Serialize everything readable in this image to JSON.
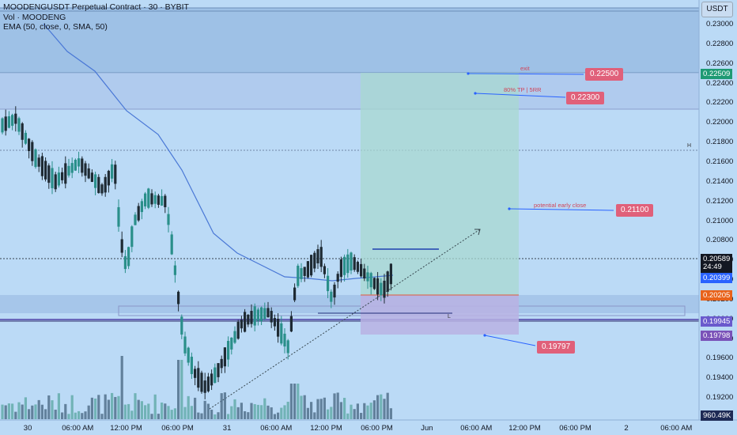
{
  "legend": {
    "title": "MOODENGUSDT Perpetual Contract · 30 · BYBIT",
    "volume": "Vol · MOODENG",
    "ema": "EMA (50, close, 0, SMA, 50)"
  },
  "price_scale": {
    "currency": "USDT",
    "ticks": [
      "0.23000",
      "0.22800",
      "0.22600",
      "0.22400",
      "0.22200",
      "0.22000",
      "0.21800",
      "0.21600",
      "0.21400",
      "0.21200",
      "0.21000",
      "0.20800",
      "0.20600",
      "0.20400",
      "0.20200",
      "0.20000",
      "0.19800",
      "0.19600",
      "0.19400",
      "0.19200",
      "0.19000"
    ]
  },
  "time_axis": {
    "labels": [
      "30",
      "06:00 AM",
      "12:00 PM",
      "06:00 PM",
      "31",
      "06:00 AM",
      "12:00 PM",
      "06:00 PM",
      "Jun",
      "06:00 AM",
      "12:00 PM",
      "06:00 PM",
      "2",
      "06:00 AM"
    ]
  },
  "price_badges": {
    "target_exit": "0.22509",
    "last_price": "0.20589",
    "countdown": "24:49",
    "ema_value": "0.20399",
    "entry": "0.20205",
    "level_1": "0.19945",
    "stop": "0.19798",
    "volume": "960.49K"
  },
  "annotations": [
    {
      "label": "exit",
      "value": "0.22500"
    },
    {
      "label": "80% TP | 5RR",
      "value": "0.22300"
    },
    {
      "label": "potential early close",
      "value": "0.21100"
    },
    {
      "label": "",
      "value": "0.19797"
    }
  ],
  "marks": {
    "high": "H",
    "low": "L"
  },
  "colors": {
    "bg": "#bbdaf6",
    "bull": "#2a8f8a",
    "bear": "#1e2a33",
    "ema": "#4a78d6",
    "tag": "#e0607a",
    "badge_green": "#1e9a73",
    "badge_black": "#131722",
    "badge_blue": "#2962ff",
    "badge_orange": "#e8621a",
    "badge_purple": "#7a52b8",
    "badge_purple2": "#6a5acd",
    "badge_navy": "#1e2a55"
  }
}
